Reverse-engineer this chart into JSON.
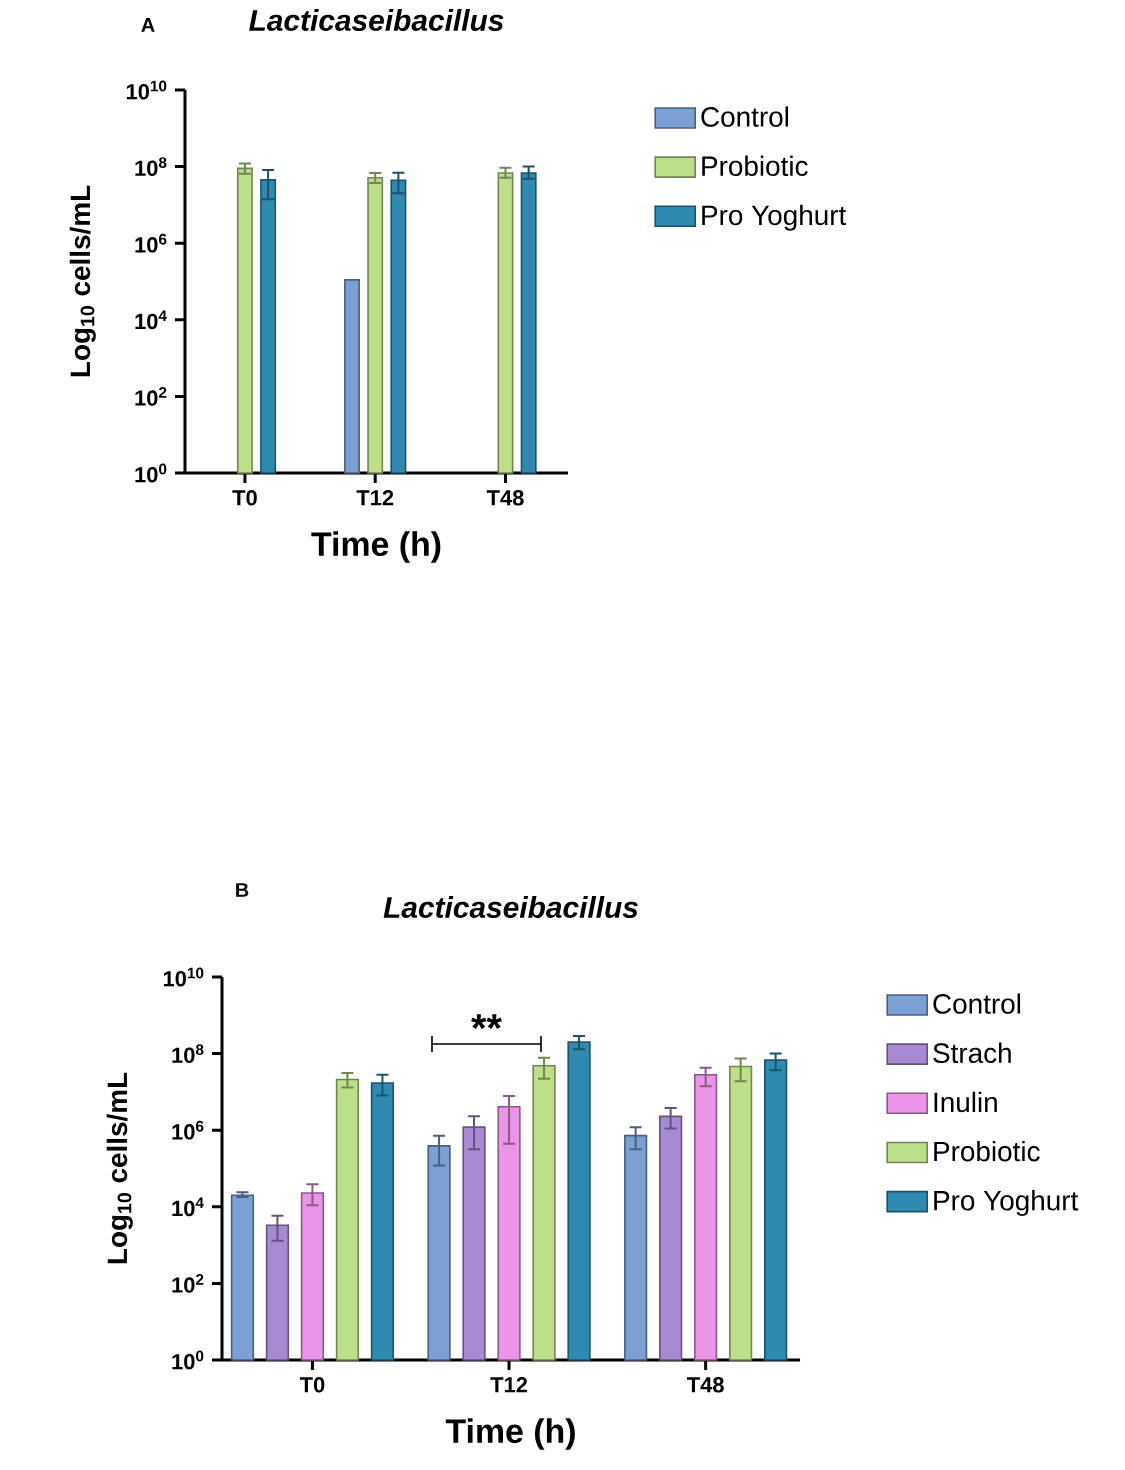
{
  "chart_data": [
    {
      "type": "bar",
      "title": "Lacticaseibacillus",
      "xlabel": "Time (h)",
      "ylabel": "Log$_{10}$ cells/mL",
      "log": "y",
      "categories": [
        "T0",
        "T12",
        "T48"
      ],
      "ylim": [
        1,
        10000000000
      ],
      "yticks": [
        {
          "value": 1,
          "label": "10$^{0}$"
        },
        {
          "value": 100,
          "label": "10$^{2}$"
        },
        {
          "value": 10000,
          "label": "10$^{4}$"
        },
        {
          "value": 1000000,
          "label": "10$^{6}$"
        },
        {
          "value": 100000000,
          "label": "10$^{8}$"
        },
        {
          "value": 10000000000,
          "label": "10$^{10}$"
        }
      ],
      "legend": "right",
      "annotations": [
        "A"
      ],
      "series": [
        {
          "name": "Control",
          "color": "#7ba0d4",
          "values": [
            null,
            110000,
            null
          ],
          "errors": [
            null,
            null,
            null
          ]
        },
        {
          "name": "Probiotic",
          "color": "#bddf8a",
          "values": [
            90000000,
            51000000,
            68000000
          ],
          "errors": [
            [
              65000000,
              120000000
            ],
            [
              37000000,
              68000000
            ],
            [
              51000000,
              93000000
            ]
          ]
        },
        {
          "name": "Pro Yoghurt",
          "color": "#2e8ab0",
          "values": [
            45000000,
            44000000,
            68000000
          ],
          "errors": [
            [
              14000000,
              82000000
            ],
            [
              20000000,
              69000000
            ],
            [
              48000000,
              100000000
            ]
          ]
        }
      ]
    },
    {
      "type": "bar",
      "title": "Lacticaseibacillus",
      "xlabel": "Time (h)",
      "ylabel": "Log$_{10}$ cells/mL",
      "log": "y",
      "categories": [
        "T0",
        "T12",
        "T48"
      ],
      "ylim": [
        1,
        10000000000
      ],
      "yticks": [
        {
          "value": 1,
          "label": "10$^{0}$"
        },
        {
          "value": 100,
          "label": "10$^{2}$"
        },
        {
          "value": 10000,
          "label": "10$^{4}$"
        },
        {
          "value": 1000000,
          "label": "10$^{6}$"
        },
        {
          "value": 100000000,
          "label": "10$^{8}$"
        },
        {
          "value": 10000000000,
          "label": "10$^{10}$"
        }
      ],
      "legend": "right",
      "annotations": [
        "B",
        "**"
      ],
      "series": [
        {
          "name": "Control",
          "color": "#7ba0d4",
          "values": [
            20000,
            390000,
            720000
          ],
          "errors": [
            [
              18000,
              24000
            ],
            [
              120000,
              720000
            ],
            [
              320000,
              1200000
            ]
          ]
        },
        {
          "name": "Strach",
          "color": "#a68bd3",
          "values": [
            3300,
            1200000,
            2300000
          ],
          "errors": [
            [
              1300,
              5800
            ],
            [
              320000,
              2300000
            ],
            [
              1100000,
              3800000
            ]
          ]
        },
        {
          "name": "Inulin",
          "color": "#ea95e8",
          "values": [
            23000,
            4100000,
            28000000
          ],
          "errors": [
            [
              11000,
              39000
            ],
            [
              440000,
              7800000
            ],
            [
              14000000,
              43000000
            ]
          ]
        },
        {
          "name": "Probiotic",
          "color": "#bddf8a",
          "values": [
            21000000,
            48000000,
            46000000
          ],
          "errors": [
            [
              13000000,
              31000000
            ],
            [
              22000000,
              78000000
            ],
            [
              19000000,
              74000000
            ]
          ]
        },
        {
          "name": "Pro Yoghurt",
          "color": "#2e8ab0",
          "values": [
            17000000,
            200000000,
            68000000
          ],
          "errors": [
            [
              8100000,
              28000000
            ],
            [
              130000000,
              290000000
            ],
            [
              37000000,
              100000000
            ]
          ]
        }
      ]
    }
  ]
}
